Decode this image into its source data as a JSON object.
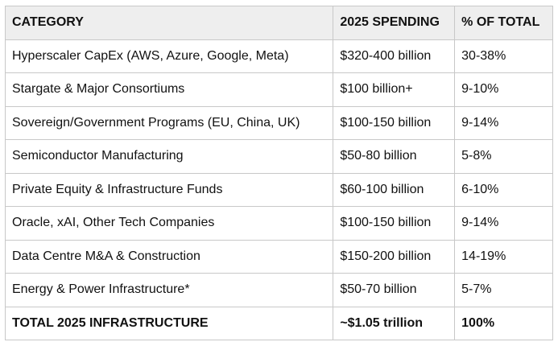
{
  "table": {
    "headers": [
      "CATEGORY",
      "2025 SPENDING",
      "% OF TOTAL"
    ],
    "rows": [
      [
        "Hyperscaler CapEx (AWS, Azure, Google, Meta)",
        "$320-400 billion",
        "30-38%"
      ],
      [
        "Stargate & Major Consortiums",
        "$100 billion+",
        "9-10%"
      ],
      [
        "Sovereign/Government Programs (EU, China, UK)",
        "$100-150 billion",
        "9-14%"
      ],
      [
        "Semiconductor Manufacturing",
        "$50-80 billion",
        "5-8%"
      ],
      [
        "Private Equity & Infrastructure Funds",
        "$60-100 billion",
        "6-10%"
      ],
      [
        "Oracle, xAI, Other Tech Companies",
        "$100-150 billion",
        "9-14%"
      ],
      [
        "Data Centre M&A & Construction",
        "$150-200 billion",
        "14-19%"
      ],
      [
        "Energy & Power Infrastructure*",
        "$50-70 billion",
        "5-7%"
      ]
    ],
    "total": [
      "TOTAL 2025 INFRASTRUCTURE",
      "~$1.05 trillion",
      "100%"
    ]
  }
}
